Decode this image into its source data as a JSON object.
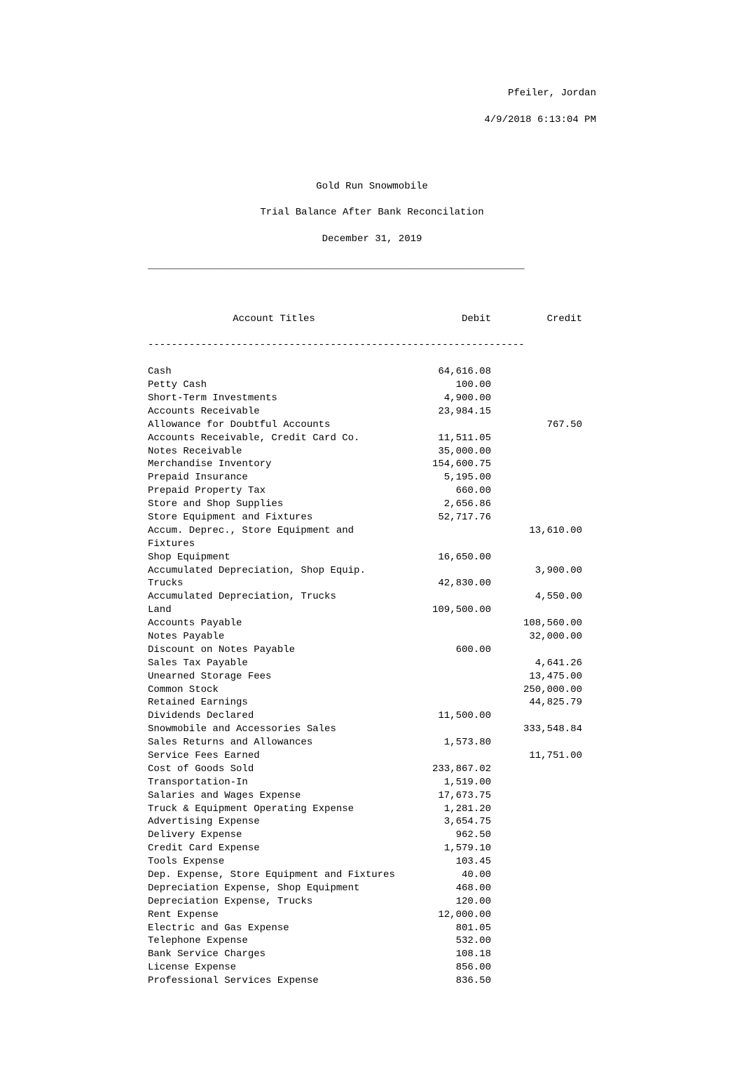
{
  "header": {
    "name": "Pfeiler, Jordan",
    "timestamp": "4/9/2018 6:13:04 PM"
  },
  "report": {
    "company": "Gold Run Snowmobile",
    "title": "Trial Balance After Bank Reconcilation",
    "date": "December 31, 2019"
  },
  "divider_top": "________________________________________________________________",
  "column_header": {
    "title": "Account Titles",
    "debit": "Debit",
    "credit": "Credit"
  },
  "divider_dash": "----------------------------------------------------------------",
  "rows": [
    {
      "title": "Cash",
      "debit": "64,616.08",
      "credit": ""
    },
    {
      "title": "Petty Cash",
      "debit": "100.00",
      "credit": ""
    },
    {
      "title": "Short-Term Investments",
      "debit": "4,900.00",
      "credit": ""
    },
    {
      "title": "Accounts Receivable",
      "debit": "23,984.15",
      "credit": ""
    },
    {
      "title": "Allowance for Doubtful Accounts",
      "debit": "",
      "credit": "767.50"
    },
    {
      "title": "Accounts Receivable, Credit Card Co.",
      "debit": "11,511.05",
      "credit": ""
    },
    {
      "title": "Notes Receivable",
      "debit": "35,000.00",
      "credit": ""
    },
    {
      "title": "Merchandise Inventory",
      "debit": "154,600.75",
      "credit": ""
    },
    {
      "title": "Prepaid Insurance",
      "debit": "5,195.00",
      "credit": ""
    },
    {
      "title": "Prepaid Property Tax",
      "debit": "660.00",
      "credit": ""
    },
    {
      "title": "Store and Shop Supplies",
      "debit": "2,656.86",
      "credit": ""
    },
    {
      "title": "Store Equipment and Fixtures",
      "debit": "52,717.76",
      "credit": ""
    },
    {
      "title": "Accum. Deprec., Store Equipment and Fixtures",
      "debit": "",
      "credit": "13,610.00"
    },
    {
      "title": "Shop Equipment",
      "debit": "16,650.00",
      "credit": ""
    },
    {
      "title": "Accumulated Depreciation, Shop Equip.",
      "debit": "",
      "credit": "3,900.00"
    },
    {
      "title": "Trucks",
      "debit": "42,830.00",
      "credit": ""
    },
    {
      "title": "Accumulated Depreciation, Trucks",
      "debit": "",
      "credit": "4,550.00"
    },
    {
      "title": "Land",
      "debit": "109,500.00",
      "credit": ""
    },
    {
      "title": "Accounts Payable",
      "debit": "",
      "credit": "108,560.00"
    },
    {
      "title": "Notes Payable",
      "debit": "",
      "credit": "32,000.00"
    },
    {
      "title": "Discount on Notes Payable",
      "debit": "600.00",
      "credit": ""
    },
    {
      "title": "Sales Tax Payable",
      "debit": "",
      "credit": "4,641.26"
    },
    {
      "title": "Unearned Storage Fees",
      "debit": "",
      "credit": "13,475.00"
    },
    {
      "title": "Common Stock",
      "debit": "",
      "credit": "250,000.00"
    },
    {
      "title": "Retained Earnings",
      "debit": "",
      "credit": "44,825.79"
    },
    {
      "title": "Dividends Declared",
      "debit": "11,500.00",
      "credit": ""
    },
    {
      "title": "Snowmobile and Accessories Sales",
      "debit": "",
      "credit": "333,548.84"
    },
    {
      "title": "Sales Returns and Allowances",
      "debit": "1,573.80",
      "credit": ""
    },
    {
      "title": "Service Fees Earned",
      "debit": "",
      "credit": "11,751.00"
    },
    {
      "title": "Cost of Goods Sold",
      "debit": "233,867.02",
      "credit": ""
    },
    {
      "title": "Transportation-In",
      "debit": "1,519.00",
      "credit": ""
    },
    {
      "title": "Salaries and Wages Expense",
      "debit": "17,673.75",
      "credit": ""
    },
    {
      "title": "Truck & Equipment Operating Expense",
      "debit": "1,281.20",
      "credit": ""
    },
    {
      "title": "Advertising Expense",
      "debit": "3,654.75",
      "credit": ""
    },
    {
      "title": "Delivery Expense",
      "debit": "962.50",
      "credit": ""
    },
    {
      "title": "Credit Card Expense",
      "debit": "1,579.10",
      "credit": ""
    },
    {
      "title": "Tools Expense",
      "debit": "103.45",
      "credit": ""
    },
    {
      "title": "Dep. Expense, Store Equipment and Fixtures",
      "debit": "40.00",
      "credit": ""
    },
    {
      "title": "Depreciation Expense, Shop Equipment",
      "debit": "468.00",
      "credit": ""
    },
    {
      "title": "Depreciation Expense, Trucks",
      "debit": "120.00",
      "credit": ""
    },
    {
      "title": "Rent Expense",
      "debit": "12,000.00",
      "credit": ""
    },
    {
      "title": "Electric and Gas Expense",
      "debit": "801.05",
      "credit": ""
    },
    {
      "title": "Telephone Expense",
      "debit": "532.00",
      "credit": ""
    },
    {
      "title": "Bank Service Charges",
      "debit": "108.18",
      "credit": ""
    },
    {
      "title": "License Expense",
      "debit": "856.00",
      "credit": ""
    },
    {
      "title": "Professional Services Expense",
      "debit": "836.50",
      "credit": ""
    }
  ]
}
